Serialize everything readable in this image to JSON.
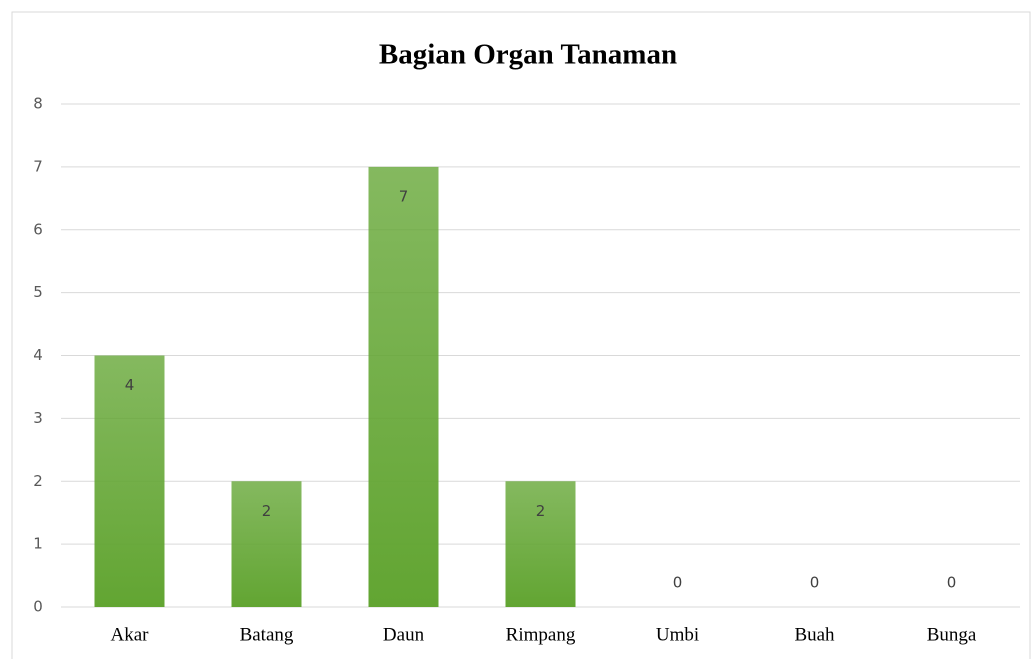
{
  "chart_data": {
    "type": "bar",
    "title": "Bagian Organ Tanaman",
    "categories": [
      "Akar",
      "Batang",
      "Daun",
      "Rimpang",
      "Umbi",
      "Buah",
      "Bunga"
    ],
    "values": [
      4,
      2,
      7,
      2,
      0,
      0,
      0
    ],
    "color": "#62a532",
    "ylim": [
      0,
      8
    ],
    "yticks": [
      0,
      1,
      2,
      3,
      4,
      5,
      6,
      7,
      8
    ],
    "grid": true
  }
}
